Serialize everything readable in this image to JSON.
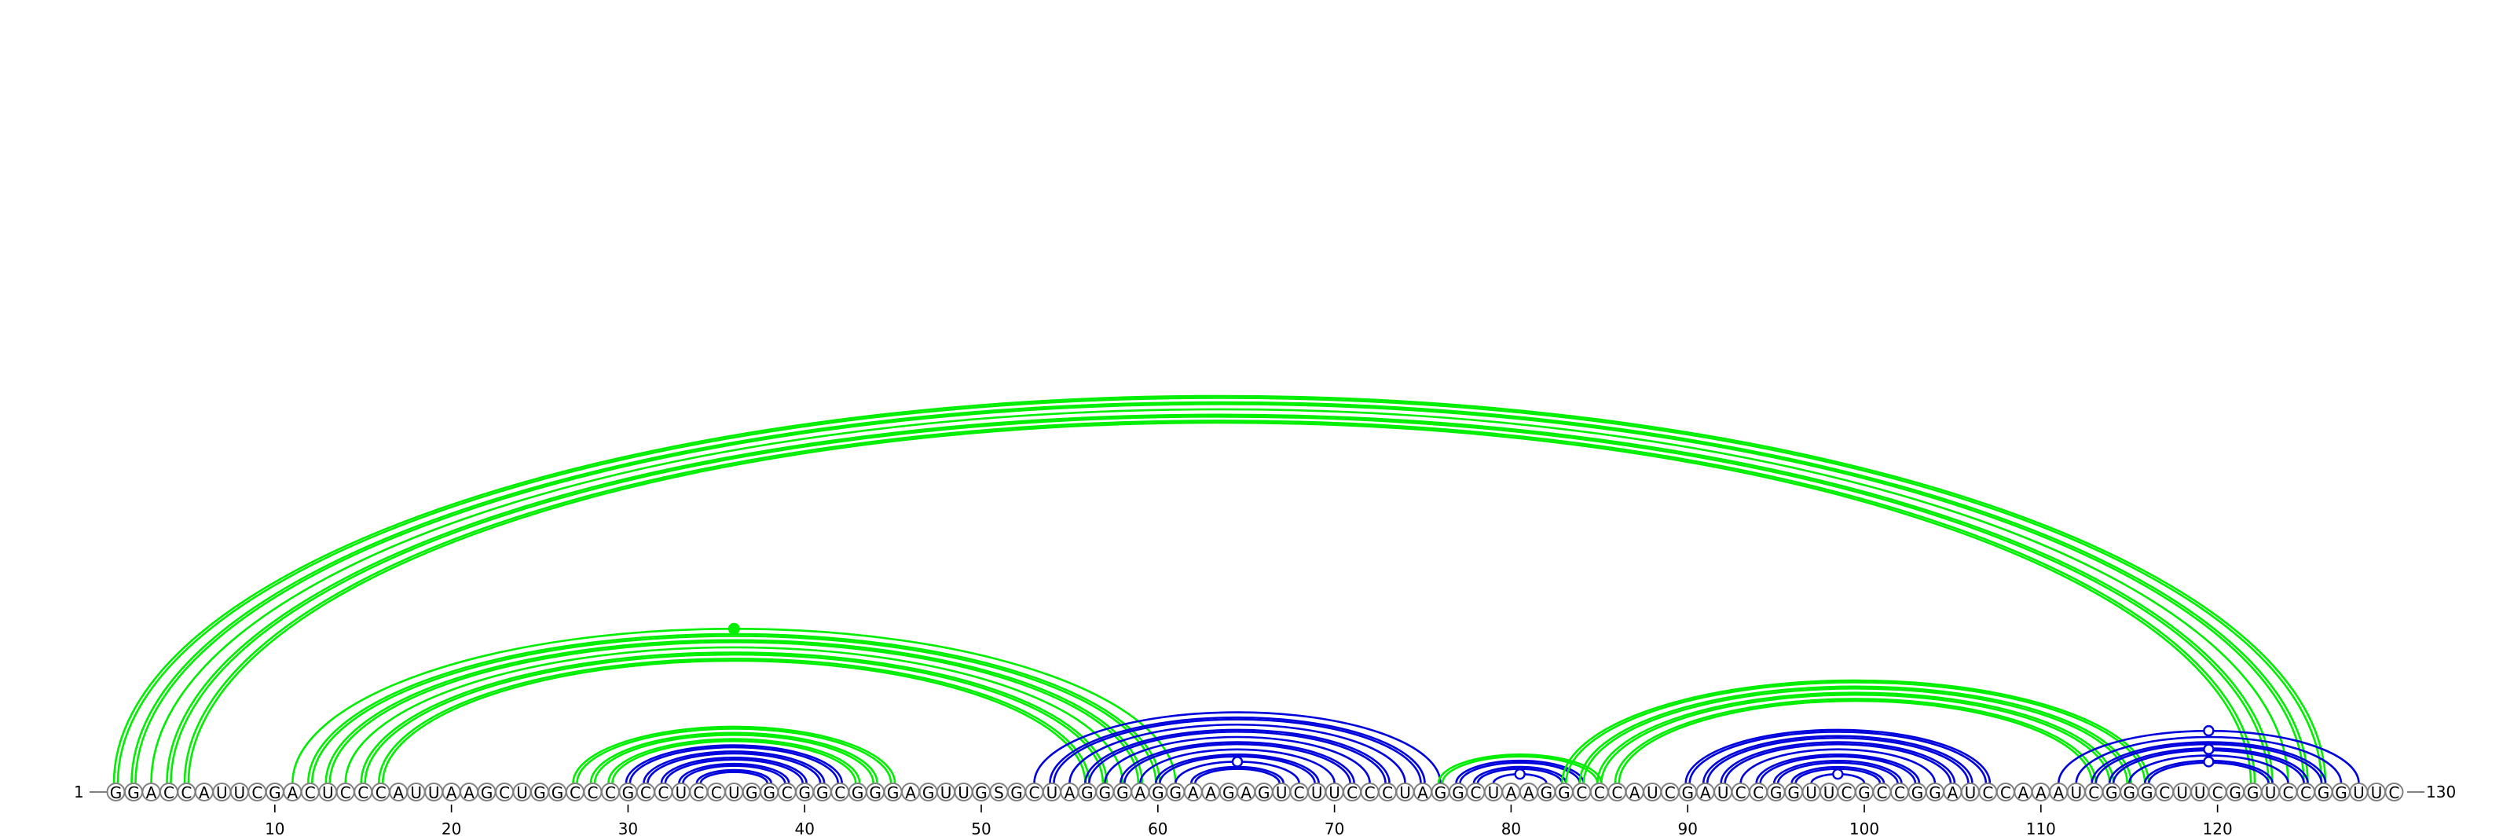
{
  "sequence": "GGACCAUUCGACUCCCAUUAAGCUGGCCCGCCUCCUGGCGGCGGGAGUUGSGCUAGGGAGGAAGAGUCUUCCCUAGGCUAAGGCCCAUCGAUCCGGUUCGCCGGAUCCAAAUCGGGCUUCGGUCCGGUUC",
  "start_label": "1",
  "end_label": "130",
  "ticks": [
    {
      "pos": 10,
      "label": "10"
    },
    {
      "pos": 20,
      "label": "20"
    },
    {
      "pos": 30,
      "label": "30"
    },
    {
      "pos": 40,
      "label": "40"
    },
    {
      "pos": 50,
      "label": "50"
    },
    {
      "pos": 60,
      "label": "60"
    },
    {
      "pos": 70,
      "label": "70"
    },
    {
      "pos": 80,
      "label": "80"
    },
    {
      "pos": 90,
      "label": "90"
    },
    {
      "pos": 100,
      "label": "100"
    },
    {
      "pos": 110,
      "label": "110"
    },
    {
      "pos": 120,
      "label": "120"
    }
  ],
  "colors": {
    "predicted": "#00ee00",
    "reference": "#0000dd",
    "nucleotide_outline": "#808080"
  },
  "arcs": [
    {
      "i": 1,
      "j": 126,
      "style": "double",
      "color": "predicted"
    },
    {
      "i": 2,
      "j": 125,
      "style": "double",
      "color": "predicted"
    },
    {
      "i": 3,
      "j": 124,
      "style": "single",
      "color": "predicted"
    },
    {
      "i": 4,
      "j": 123,
      "style": "double",
      "color": "predicted"
    },
    {
      "i": 5,
      "j": 122,
      "style": "double",
      "color": "predicted"
    },
    {
      "i": 11,
      "j": 61,
      "style": "single",
      "color": "predicted",
      "marker": "filled"
    },
    {
      "i": 12,
      "j": 60,
      "style": "double",
      "color": "predicted"
    },
    {
      "i": 13,
      "j": 59,
      "style": "double",
      "color": "predicted"
    },
    {
      "i": 14,
      "j": 58,
      "style": "single",
      "color": "predicted"
    },
    {
      "i": 15,
      "j": 57,
      "style": "double",
      "color": "predicted"
    },
    {
      "i": 16,
      "j": 56,
      "style": "double",
      "color": "predicted"
    },
    {
      "i": 27,
      "j": 45,
      "style": "double",
      "color": "predicted"
    },
    {
      "i": 28,
      "j": 44,
      "style": "double",
      "color": "predicted"
    },
    {
      "i": 29,
      "j": 43,
      "style": "double",
      "color": "predicted"
    },
    {
      "i": 30,
      "j": 42,
      "style": "double",
      "color": "reference"
    },
    {
      "i": 31,
      "j": 41,
      "style": "double",
      "color": "reference"
    },
    {
      "i": 32,
      "j": 40,
      "style": "double",
      "color": "reference"
    },
    {
      "i": 33,
      "j": 39,
      "style": "double",
      "color": "reference"
    },
    {
      "i": 34,
      "j": 38,
      "style": "double",
      "color": "reference"
    },
    {
      "i": 53,
      "j": 76,
      "style": "single",
      "color": "reference"
    },
    {
      "i": 54,
      "j": 75,
      "style": "double",
      "color": "reference"
    },
    {
      "i": 55,
      "j": 74,
      "style": "single",
      "color": "reference"
    },
    {
      "i": 56,
      "j": 73,
      "style": "double",
      "color": "reference"
    },
    {
      "i": 57,
      "j": 72,
      "style": "single",
      "color": "reference"
    },
    {
      "i": 58,
      "j": 71,
      "style": "double",
      "color": "reference"
    },
    {
      "i": 59,
      "j": 70,
      "style": "single",
      "color": "reference"
    },
    {
      "i": 60,
      "j": 69,
      "style": "double",
      "color": "reference"
    },
    {
      "i": 61,
      "j": 68,
      "style": "single",
      "color": "reference",
      "marker": "open"
    },
    {
      "i": 62,
      "j": 67,
      "style": "double",
      "color": "reference"
    },
    {
      "i": 76,
      "j": 85,
      "style": "double",
      "color": "predicted"
    },
    {
      "i": 77,
      "j": 84,
      "style": "double",
      "color": "reference"
    },
    {
      "i": 78,
      "j": 83,
      "style": "double",
      "color": "reference"
    },
    {
      "i": 79,
      "j": 82,
      "style": "single",
      "color": "reference",
      "marker": "open"
    },
    {
      "i": 83,
      "j": 116,
      "style": "double",
      "color": "predicted"
    },
    {
      "i": 84,
      "j": 115,
      "style": "double",
      "color": "predicted"
    },
    {
      "i": 85,
      "j": 114,
      "style": "double",
      "color": "predicted"
    },
    {
      "i": 86,
      "j": 113,
      "style": "double",
      "color": "predicted"
    },
    {
      "i": 90,
      "j": 107,
      "style": "double",
      "color": "reference"
    },
    {
      "i": 91,
      "j": 106,
      "style": "double",
      "color": "reference"
    },
    {
      "i": 92,
      "j": 105,
      "style": "double",
      "color": "reference"
    },
    {
      "i": 93,
      "j": 104,
      "style": "single",
      "color": "reference"
    },
    {
      "i": 94,
      "j": 103,
      "style": "double",
      "color": "reference"
    },
    {
      "i": 95,
      "j": 102,
      "style": "double",
      "color": "reference"
    },
    {
      "i": 96,
      "j": 101,
      "style": "double",
      "color": "reference"
    },
    {
      "i": 97,
      "j": 100,
      "style": "single",
      "color": "reference",
      "marker": "open"
    },
    {
      "i": 111,
      "j": 128,
      "style": "single",
      "color": "reference",
      "marker": "open"
    },
    {
      "i": 112,
      "j": 127,
      "style": "single",
      "color": "reference"
    },
    {
      "i": 113,
      "j": 126,
      "style": "double",
      "color": "reference"
    },
    {
      "i": 114,
      "j": 125,
      "style": "double",
      "color": "reference",
      "marker": "open"
    },
    {
      "i": 115,
      "j": 124,
      "style": "single",
      "color": "reference"
    },
    {
      "i": 116,
      "j": 123,
      "style": "double",
      "color": "reference",
      "marker": "open"
    }
  ]
}
